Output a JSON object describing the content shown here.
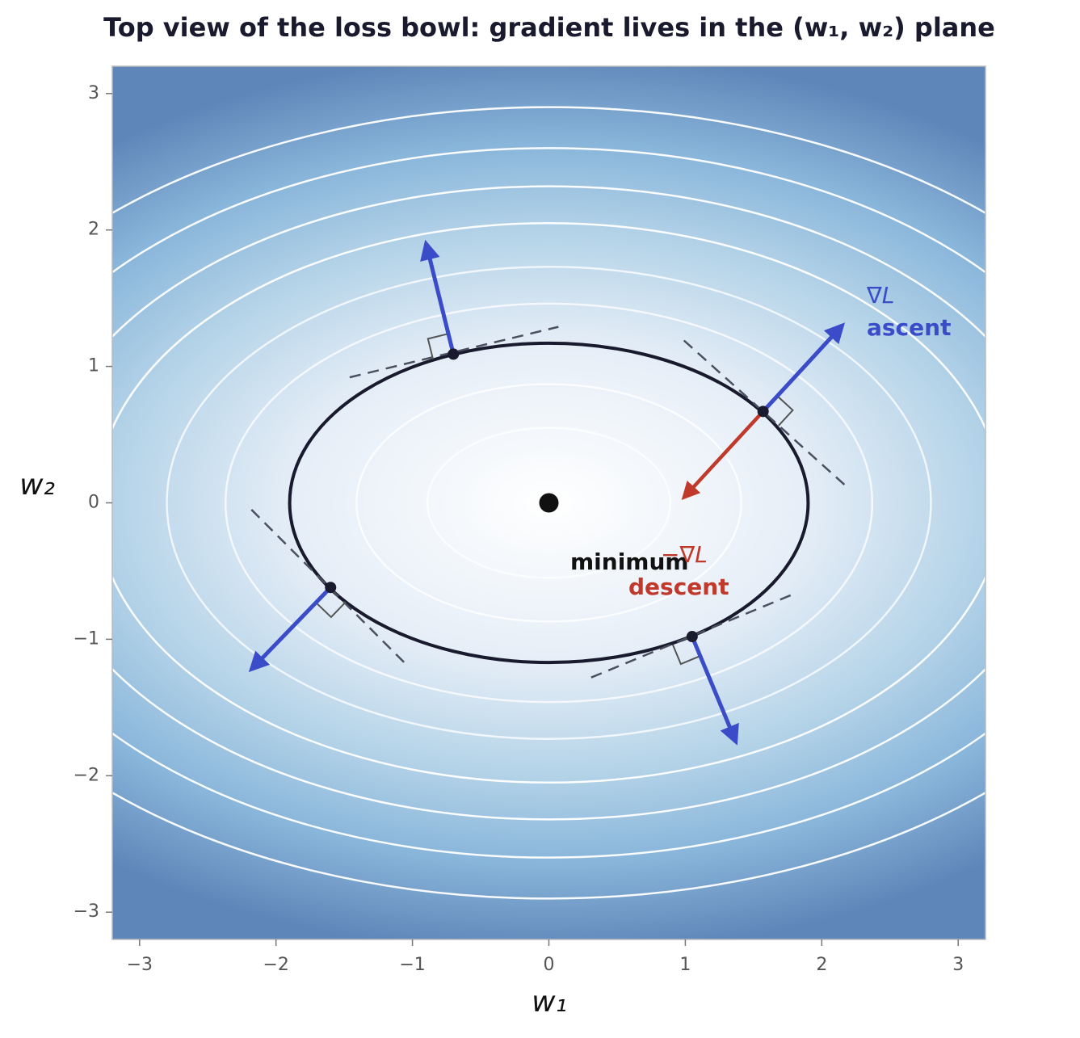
{
  "chart_data": {
    "type": "contour",
    "title": "Top view of the loss bowl: gradient lives in the (w₁, w₂) plane",
    "xlabel": "w₁",
    "ylabel": "w₂",
    "xlim": [
      -3.2,
      3.2
    ],
    "ylim": [
      -3.2,
      3.2
    ],
    "xticks": [
      {
        "value": -3,
        "label": "−3"
      },
      {
        "value": -2,
        "label": "−2"
      },
      {
        "value": -1,
        "label": "−1"
      },
      0,
      1,
      2,
      3
    ],
    "yticks": [
      {
        "value": -3,
        "label": "−3"
      },
      {
        "value": -2,
        "label": "−2"
      },
      {
        "value": -1,
        "label": "−1"
      },
      0,
      1,
      2,
      3
    ],
    "contours": {
      "color": "#ffffff",
      "w1_semi": [
        0.89,
        1.41,
        2.37,
        2.8,
        3.32,
        3.76,
        4.21,
        4.7
      ],
      "w2_semi": [
        0.55,
        0.87,
        1.46,
        1.73,
        2.05,
        2.32,
        2.6,
        2.9
      ]
    },
    "highlight": {
      "color": "#1a1a2e",
      "w1_semi": 1.9,
      "w2_semi": 1.17
    },
    "minimum": {
      "label": "minimum",
      "x": 0,
      "y": 0
    },
    "points": {
      "x": [
        -0.7,
        1.57,
        -1.6,
        1.05
      ],
      "y": [
        1.09,
        0.67,
        -0.62,
        -0.98
      ]
    },
    "ascent": {
      "label": "∇L",
      "sublabel": "ascent",
      "color": "#3b4cc8",
      "x_end": [
        -0.9,
        2.15,
        -2.18,
        1.37
      ],
      "y_end": [
        1.9,
        1.3,
        -1.22,
        -1.75
      ]
    },
    "descent": {
      "label": "−∇L",
      "sublabel": "descent",
      "color": "#c0392b",
      "x_start": 1.57,
      "y_start": 0.67,
      "x_end": 0.99,
      "y_end": 0.04
    },
    "tangents": {
      "x1": [
        -1.46,
        0.99,
        -2.18,
        0.31
      ],
      "y1": [
        0.92,
        1.19,
        -0.05,
        -1.28
      ],
      "x2": [
        0.07,
        2.17,
        -1.05,
        1.79
      ],
      "y2": [
        1.29,
        0.13,
        -1.18,
        -0.67
      ]
    }
  }
}
